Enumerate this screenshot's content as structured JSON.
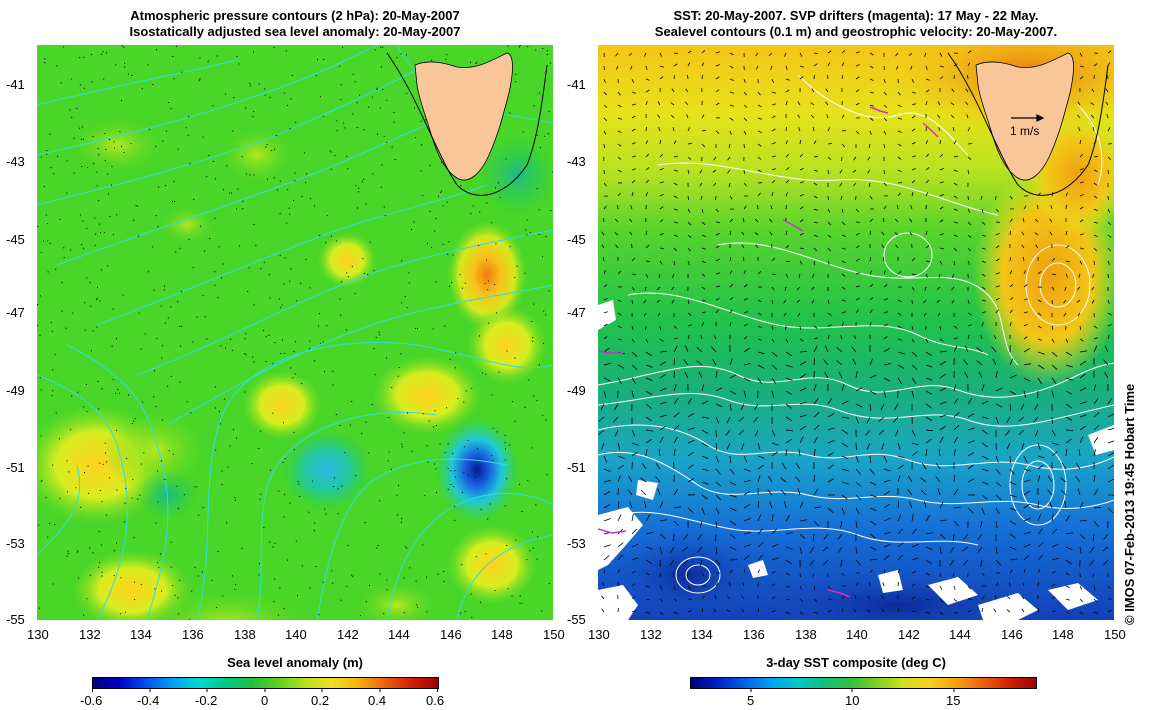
{
  "left_panel": {
    "title_line1": "Atmospheric pressure contours (2 hPa): 20-May-2007",
    "title_line2": "Isostatically adjusted sea level anomaly: 20-May-2007",
    "colorbar_title": "Sea level anomaly (m)",
    "colorbar_ticks": [
      "-0.6",
      "-0.4",
      "-0.2",
      "0",
      "0.2",
      "0.4",
      "0.6"
    ],
    "colorbar_range": [
      -0.6,
      0.6
    ]
  },
  "right_panel": {
    "title_line1": "SST: 20-May-2007. SVP drifters (magenta): 17 May - 22 May.",
    "title_line2": "Sealevel contours (0.1 m) and geostrophic velocity: 20-May-2007.",
    "colorbar_title": "3-day SST composite (deg C)",
    "colorbar_ticks": [
      "5",
      "10",
      "15"
    ],
    "colorbar_range": [
      2,
      19
    ],
    "velocity_scale_label": "1 m/s"
  },
  "map_axes": {
    "lon_ticks": [
      "130",
      "132",
      "134",
      "136",
      "138",
      "140",
      "142",
      "144",
      "146",
      "148",
      "150"
    ],
    "lat_ticks": [
      "-41",
      "-43",
      "-45",
      "-47",
      "-49",
      "-51",
      "-53",
      "-55"
    ],
    "lon_range": [
      130,
      150
    ],
    "lat_range": [
      -55,
      -40.2
    ]
  },
  "credit": "© IMOS 07-Feb-2013 19:45 Hobart Time",
  "colors": {
    "land": "#f9c69a",
    "ocean_mid": "#22cc33",
    "contour_cyan": "#33dddd",
    "contour_white": "#ffffff",
    "drifter_magenta": "#cc33cc"
  }
}
